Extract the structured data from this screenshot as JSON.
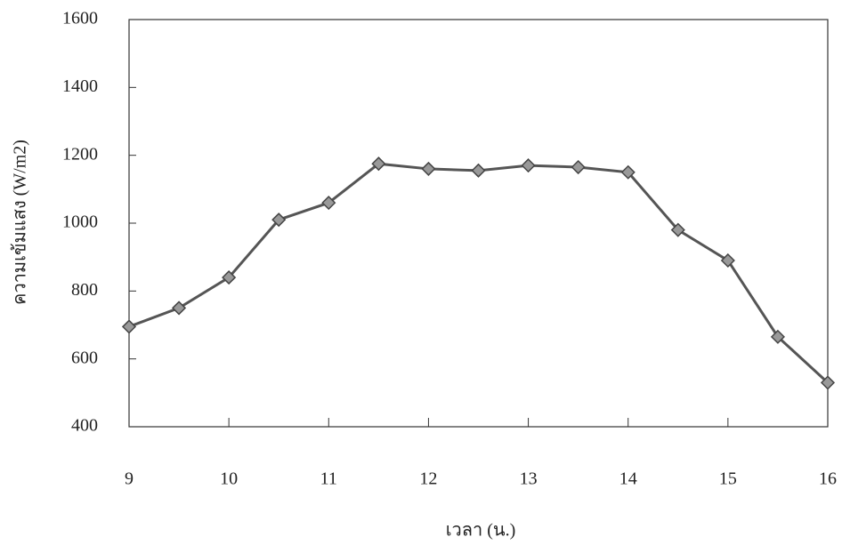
{
  "chart_data": {
    "type": "line",
    "x_label": "เวลา (น.)",
    "y_label": "ความเข้มแสง (W/m2)",
    "x": [
      9,
      9.5,
      10,
      10.5,
      11,
      11.5,
      12,
      12.5,
      13,
      13.5,
      14,
      14.5,
      15,
      15.5,
      16
    ],
    "series": [
      {
        "color": "#555555",
        "values": [
          695,
          750,
          840,
          1010,
          1060,
          1175,
          1160,
          1155,
          1170,
          1165,
          1150,
          980,
          890,
          665,
          530
        ]
      }
    ],
    "xlim": [
      9,
      16
    ],
    "xticks": [
      9,
      10,
      11,
      12,
      13,
      14,
      15,
      16
    ],
    "ylim": [
      400,
      1600
    ],
    "yticks": [
      400,
      600,
      800,
      1000,
      1200,
      1400,
      1600
    ]
  }
}
